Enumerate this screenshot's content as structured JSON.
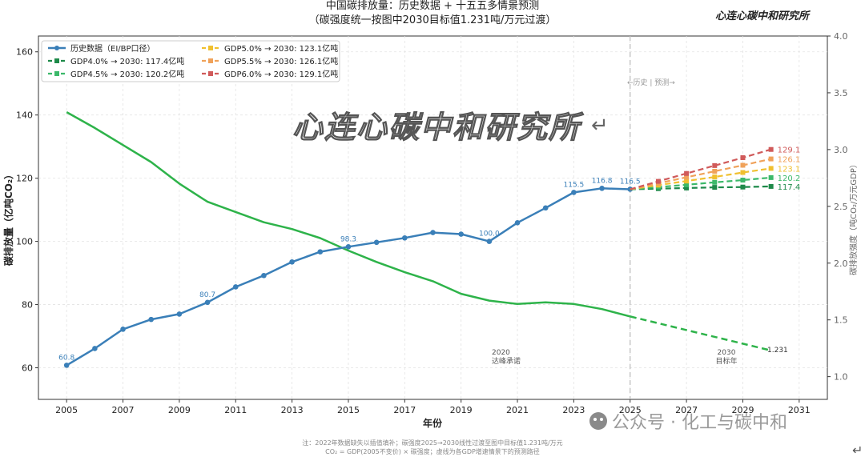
{
  "brand": "心连心碳中和研究所",
  "watermark": "心连心碳中和研究所",
  "wechat": "公众号 · 化工与碳中和",
  "footnote_1": "注：2022年数据缺失以插值填补；碳强度2025→2030线性过渡至图中目标值1.231吨/万元",
  "footnote_2": "CO₂ = GDP(2005不变价) × 碳强度；虚线为各GDP增速情景下的预测路径",
  "annotations": {
    "divider_label": "←历史 | 预测→",
    "peak_label_1": "2020",
    "peak_label_2": "达峰承诺",
    "target_label_1": "2030",
    "target_label_2": "目标年",
    "intensity_end_label": "1.231"
  },
  "colors": {
    "history": "#3a7fb8",
    "intensity": "#2eb34a",
    "gdp40": "#1e8a4a",
    "gdp45": "#3cb96a",
    "gdp50": "#f0c030",
    "gdp55": "#f0a25a",
    "gdp60": "#d05a5a"
  },
  "chart_data": {
    "type": "line",
    "title": "中国碳排放量：历史数据 + 十五五多情景预测",
    "subtitle": "（碳强度统一按图中2030目标值1.231吨/万元过渡）",
    "xlabel": "年份",
    "ylabel": "碳排放量（亿吨CO₂）",
    "y2label": "碳排放强度（吨CO₂/万元GDP）",
    "xlim": [
      2004,
      2032
    ],
    "ylim": [
      50,
      165
    ],
    "y2lim": [
      0.8,
      4.0
    ],
    "x_ticks": [
      2005,
      2007,
      2009,
      2011,
      2013,
      2015,
      2017,
      2019,
      2021,
      2023,
      2025,
      2027,
      2029,
      2031
    ],
    "y_ticks": [
      60,
      80,
      100,
      120,
      140,
      160
    ],
    "y2_ticks": [
      "1.0",
      "1.5",
      "2.0",
      "2.5",
      "3.0",
      "3.5",
      "4.0"
    ],
    "grid": true,
    "legend_position": "top-left",
    "history": {
      "name": "历史数据（EI/BP口径）",
      "x": [
        2005,
        2006,
        2007,
        2008,
        2009,
        2010,
        2011,
        2012,
        2013,
        2014,
        2015,
        2016,
        2017,
        2018,
        2019,
        2020,
        2021,
        2022,
        2023,
        2024,
        2025
      ],
      "y": [
        60.8,
        66.1,
        72.2,
        75.3,
        77.0,
        80.7,
        85.6,
        89.2,
        93.5,
        96.7,
        98.3,
        99.7,
        101.1,
        102.8,
        102.3,
        100.0,
        105.9,
        110.6,
        115.5,
        116.8,
        116.5
      ],
      "labels": [
        {
          "x": 2005,
          "y": 60.8,
          "text": "60.8"
        },
        {
          "x": 2010,
          "y": 80.7,
          "text": "80.7"
        },
        {
          "x": 2015,
          "y": 98.3,
          "text": "98.3"
        },
        {
          "x": 2020,
          "y": 100.0,
          "text": "100.0"
        },
        {
          "x": 2023,
          "y": 115.5,
          "text": "115.5"
        },
        {
          "x": 2024,
          "y": 116.8,
          "text": "116.8"
        },
        {
          "x": 2025,
          "y": 116.5,
          "text": "116.5"
        }
      ]
    },
    "intensity": {
      "x": [
        2005,
        2006,
        2007,
        2008,
        2009,
        2010,
        2011,
        2012,
        2013,
        2014,
        2015,
        2016,
        2017,
        2018,
        2019,
        2020,
        2021,
        2022,
        2023,
        2024,
        2025
      ],
      "y": [
        3.33,
        3.19,
        3.04,
        2.89,
        2.7,
        2.54,
        2.45,
        2.36,
        2.3,
        2.22,
        2.11,
        2.01,
        1.92,
        1.84,
        1.73,
        1.67,
        1.64,
        1.655,
        1.64,
        1.595,
        1.53
      ],
      "projection_x": [
        2025,
        2030
      ],
      "projection_y": [
        1.53,
        1.231
      ]
    },
    "scenarios": [
      {
        "name": "GDP4.0% → 2030: 117.4亿吨",
        "color_key": "gdp40",
        "x": [
          2025,
          2026,
          2027,
          2028,
          2029,
          2030
        ],
        "y": [
          116.5,
          116.7,
          116.9,
          117.1,
          117.2,
          117.4
        ],
        "end_label": "117.4"
      },
      {
        "name": "GDP4.5% → 2030: 120.2亿吨",
        "color_key": "gdp45",
        "x": [
          2025,
          2026,
          2027,
          2028,
          2029,
          2030
        ],
        "y": [
          116.5,
          117.2,
          117.9,
          118.7,
          119.4,
          120.2
        ],
        "end_label": "120.2"
      },
      {
        "name": "GDP5.0% → 2030: 123.1亿吨",
        "color_key": "gdp50",
        "x": [
          2025,
          2026,
          2027,
          2028,
          2029,
          2030
        ],
        "y": [
          116.5,
          117.8,
          119.1,
          120.4,
          121.8,
          123.1
        ],
        "end_label": "123.1"
      },
      {
        "name": "GDP5.5% → 2030: 126.1亿吨",
        "color_key": "gdp55",
        "x": [
          2025,
          2026,
          2027,
          2028,
          2029,
          2030
        ],
        "y": [
          116.5,
          118.4,
          120.3,
          122.2,
          124.1,
          126.1
        ],
        "end_label": "126.1"
      },
      {
        "name": "GDP6.0% → 2030: 129.1亿吨",
        "color_key": "gdp60",
        "x": [
          2025,
          2026,
          2027,
          2028,
          2029,
          2030
        ],
        "y": [
          116.5,
          119.0,
          121.5,
          124.0,
          126.5,
          129.1
        ],
        "end_label": "129.1"
      }
    ]
  }
}
